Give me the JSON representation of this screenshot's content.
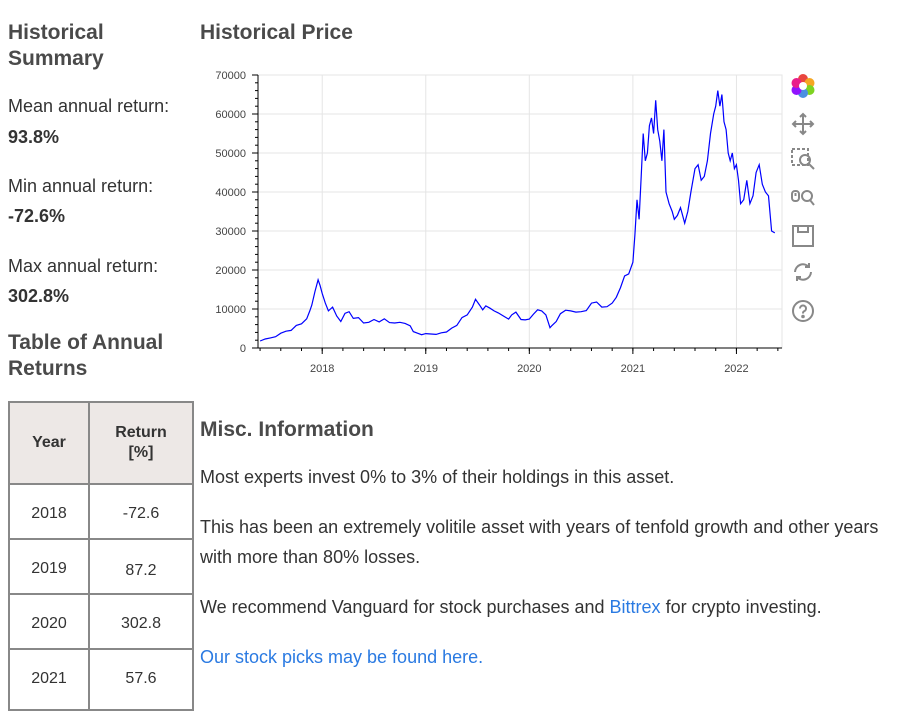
{
  "summary": {
    "title": "Historical Summary",
    "mean_label": "Mean annual return:",
    "mean_value": "93.8%",
    "min_label": "Min annual return:",
    "min_value": "-72.6%",
    "max_label": "Max annual return:",
    "max_value": "302.8%"
  },
  "table": {
    "title": "Table of Annual Returns",
    "headers": [
      "Year",
      "Return [%]"
    ],
    "rows": [
      {
        "year": "2018",
        "ret": "-72.6"
      },
      {
        "year": "2019",
        "ret": "87.2"
      },
      {
        "year": "2020",
        "ret": "302.8"
      },
      {
        "year": "2021",
        "ret": "57.6"
      }
    ]
  },
  "misc": {
    "title": "Misc. Information",
    "p1": "Most experts invest 0% to 3% of their holdings in this asset.",
    "p2": "This has been an extremely volitile asset with years of tenfold growth and other years with more than 80% losses.",
    "p3_before": "We recommend Vanguard for stock purchases and ",
    "p3_link": "Bittrex",
    "p3_after": " for crypto investing.",
    "p4_link": "Our stock picks may be found here."
  },
  "toolbar": {
    "icons": [
      "bokeh-logo-icon",
      "pan-icon",
      "box-zoom-icon",
      "wheel-zoom-icon",
      "save-icon",
      "reset-icon",
      "help-icon"
    ]
  },
  "colors": {
    "line": "#0000ff",
    "link": "#2a7ae2"
  },
  "chart_data": {
    "type": "line",
    "title": "Historical Price",
    "xlabel": "",
    "ylabel": "",
    "xlim": [
      2017.38,
      2022.44
    ],
    "ylim": [
      0,
      70000
    ],
    "xticks": [
      2018,
      2019,
      2020,
      2021,
      2022
    ],
    "yticks": [
      0,
      10000,
      20000,
      30000,
      40000,
      50000,
      60000,
      70000
    ],
    "grid": true,
    "series": [
      {
        "name": "Price",
        "x": [
          2017.4,
          2017.45,
          2017.5,
          2017.55,
          2017.6,
          2017.65,
          2017.7,
          2017.75,
          2017.8,
          2017.85,
          2017.88,
          2017.9,
          2017.93,
          2017.96,
          2017.98,
          2018.0,
          2018.03,
          2018.06,
          2018.1,
          2018.14,
          2018.18,
          2018.22,
          2018.26,
          2018.3,
          2018.35,
          2018.4,
          2018.45,
          2018.5,
          2018.55,
          2018.6,
          2018.65,
          2018.7,
          2018.75,
          2018.8,
          2018.85,
          2018.88,
          2018.92,
          2018.96,
          2019.0,
          2019.05,
          2019.1,
          2019.15,
          2019.2,
          2019.25,
          2019.3,
          2019.35,
          2019.4,
          2019.45,
          2019.48,
          2019.52,
          2019.55,
          2019.58,
          2019.62,
          2019.66,
          2019.7,
          2019.75,
          2019.8,
          2019.83,
          2019.87,
          2019.92,
          2019.96,
          2020.0,
          2020.04,
          2020.08,
          2020.12,
          2020.16,
          2020.2,
          2020.22,
          2020.26,
          2020.3,
          2020.35,
          2020.4,
          2020.45,
          2020.5,
          2020.55,
          2020.6,
          2020.65,
          2020.7,
          2020.75,
          2020.8,
          2020.84,
          2020.88,
          2020.92,
          2020.96,
          2021.0,
          2021.02,
          2021.04,
          2021.06,
          2021.08,
          2021.1,
          2021.12,
          2021.14,
          2021.16,
          2021.18,
          2021.2,
          2021.22,
          2021.24,
          2021.26,
          2021.28,
          2021.3,
          2021.32,
          2021.35,
          2021.38,
          2021.4,
          2021.43,
          2021.46,
          2021.5,
          2021.53,
          2021.56,
          2021.6,
          2021.63,
          2021.66,
          2021.69,
          2021.72,
          2021.75,
          2021.78,
          2021.8,
          2021.82,
          2021.84,
          2021.86,
          2021.88,
          2021.9,
          2021.92,
          2021.94,
          2021.96,
          2021.98,
          2022.0,
          2022.02,
          2022.04,
          2022.07,
          2022.1,
          2022.13,
          2022.16,
          2022.19,
          2022.22,
          2022.25,
          2022.28,
          2022.31,
          2022.34,
          2022.37
        ],
        "values": [
          1800,
          2300,
          2600,
          2900,
          3800,
          4300,
          4500,
          5800,
          6200,
          7500,
          9500,
          11000,
          14500,
          17500,
          16000,
          14000,
          11500,
          9500,
          10500,
          8200,
          6800,
          8900,
          9300,
          7600,
          7800,
          6400,
          6600,
          7300,
          6700,
          7500,
          6500,
          6400,
          6600,
          6300,
          5700,
          4200,
          3800,
          3400,
          3700,
          3600,
          3500,
          3900,
          4100,
          5100,
          5800,
          7800,
          8500,
          10500,
          12500,
          11000,
          9800,
          10800,
          10200,
          9500,
          9000,
          8200,
          7400,
          8500,
          9200,
          7300,
          7200,
          7400,
          8700,
          9800,
          9500,
          8500,
          5200,
          5800,
          6800,
          8800,
          9700,
          9500,
          9200,
          9300,
          9600,
          11500,
          11800,
          10500,
          10600,
          11500,
          13000,
          15500,
          18500,
          19000,
          22000,
          29000,
          38000,
          33000,
          44000,
          55000,
          48000,
          50000,
          57000,
          59000,
          55000,
          63500,
          56000,
          53000,
          48000,
          56000,
          40000,
          37000,
          35000,
          33000,
          34000,
          36000,
          32000,
          35000,
          40000,
          46000,
          47000,
          43000,
          44000,
          48000,
          55000,
          60000,
          62000,
          66000,
          62000,
          65000,
          58000,
          56000,
          50000,
          48000,
          50000,
          46000,
          47000,
          43000,
          37000,
          38000,
          43000,
          37000,
          39000,
          45000,
          47000,
          42000,
          40000,
          39000,
          30000,
          29500
        ]
      }
    ]
  }
}
